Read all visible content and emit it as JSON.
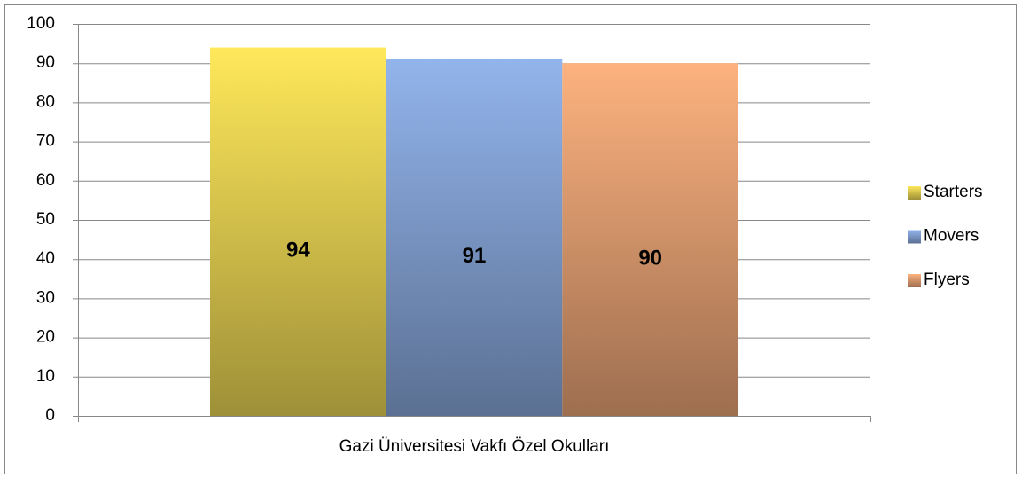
{
  "chart_data": {
    "type": "bar",
    "categories": [
      "Gazi Üniversitesi Vakfı Özel Okulları"
    ],
    "series": [
      {
        "name": "Starters",
        "color": "#ffe85a",
        "values": [
          94
        ]
      },
      {
        "name": "Movers",
        "color": "#92b4ec",
        "values": [
          91
        ]
      },
      {
        "name": "Flyers",
        "color": "#fdb27f",
        "values": [
          90
        ]
      }
    ],
    "ylim": [
      0,
      100
    ],
    "yticks": [
      0,
      10,
      20,
      30,
      40,
      50,
      60,
      70,
      80,
      90,
      100
    ],
    "grid": true,
    "legend": "right"
  }
}
